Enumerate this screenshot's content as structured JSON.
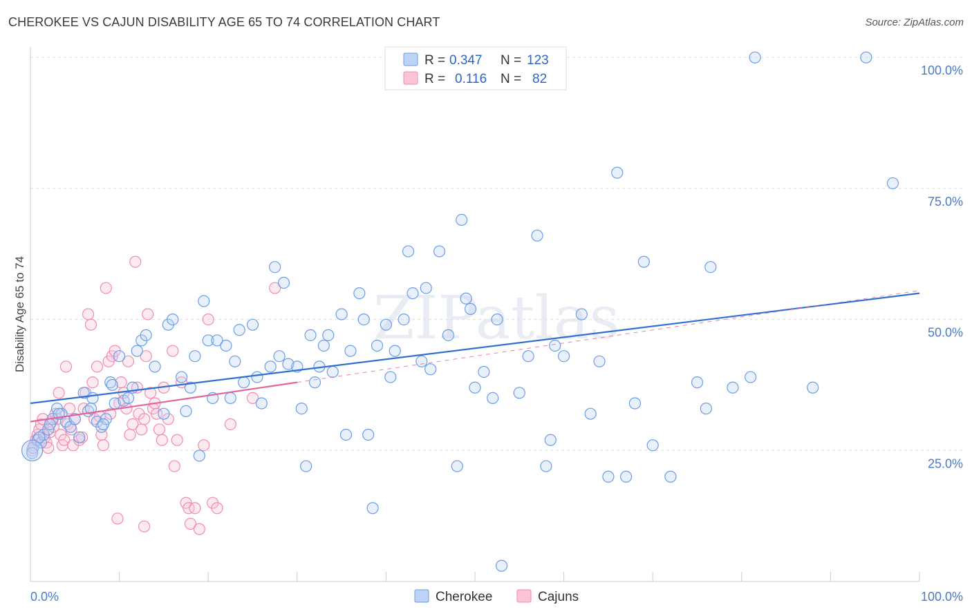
{
  "title": "CHEROKEE VS CAJUN DISABILITY AGE 65 TO 74 CORRELATION CHART",
  "source": "Source: ZipAtlas.com",
  "watermark": "ZIPatlas",
  "colors": {
    "cherokee": "#6a9de6",
    "cajuns": "#f08cb0",
    "cherokee_line": "#2f6fd0",
    "cajuns_line": "#e0649a"
  },
  "legend": {
    "rows": [
      {
        "r_label": "R =",
        "r_value": "0.347",
        "n_label": "N =",
        "n_value": "123"
      },
      {
        "r_label": "R =",
        "r_value": "0.116",
        "n_label": "N =",
        "n_value": "82"
      }
    ]
  },
  "bottom_legend": [
    "Cherokee",
    "Cajuns"
  ],
  "chart_data": {
    "type": "scatter",
    "title": "CHEROKEE VS CAJUN DISABILITY AGE 65 TO 74 CORRELATION CHART",
    "xlabel": "",
    "ylabel": "Disability Age 65 to 74",
    "xlim": [
      0,
      100
    ],
    "ylim": [
      0,
      102
    ],
    "x_tick_labels": [
      "0.0%",
      "100.0%"
    ],
    "y_ticks": [
      25,
      50,
      75,
      100
    ],
    "y_tick_labels": [
      "25.0%",
      "50.0%",
      "75.0%",
      "100.0%"
    ],
    "grid": true,
    "legend_position": "top-center",
    "series": [
      {
        "name": "Cherokee",
        "trend": {
          "x0": 0,
          "y0": 34.0,
          "x1": 100,
          "y1": 55.0
        },
        "points": [
          [
            0.3,
            25.5
          ],
          [
            0.8,
            27
          ],
          [
            1.2,
            26.5
          ],
          [
            1.5,
            28
          ],
          [
            2,
            29
          ],
          [
            2.5,
            31
          ],
          [
            3,
            33
          ],
          [
            3.5,
            32
          ],
          [
            4,
            30.5
          ],
          [
            4.5,
            29.5
          ],
          [
            5,
            31
          ],
          [
            5.5,
            27.5
          ],
          [
            6,
            36
          ],
          [
            6.5,
            32.5
          ],
          [
            7,
            35
          ],
          [
            7.5,
            30.5
          ],
          [
            8,
            29.5
          ],
          [
            8.5,
            31
          ],
          [
            9,
            38
          ],
          [
            9.5,
            34
          ],
          [
            10,
            43
          ],
          [
            10.5,
            34.5
          ],
          [
            11,
            35
          ],
          [
            11.5,
            37
          ],
          [
            12,
            44
          ],
          [
            12.5,
            46
          ],
          [
            13,
            47
          ],
          [
            14,
            41
          ],
          [
            15,
            32
          ],
          [
            15.5,
            49
          ],
          [
            16,
            50
          ],
          [
            17,
            39
          ],
          [
            17.5,
            32.5
          ],
          [
            18,
            37
          ],
          [
            18.5,
            43
          ],
          [
            19,
            24
          ],
          [
            19.5,
            53.5
          ],
          [
            20,
            46
          ],
          [
            20.5,
            35
          ],
          [
            21,
            46
          ],
          [
            22,
            45
          ],
          [
            22.5,
            35
          ],
          [
            23,
            42
          ],
          [
            23.5,
            48
          ],
          [
            24,
            38
          ],
          [
            25,
            49
          ],
          [
            25.5,
            39
          ],
          [
            26,
            34
          ],
          [
            27,
            41
          ],
          [
            27.5,
            60
          ],
          [
            28,
            43
          ],
          [
            28.5,
            57
          ],
          [
            29,
            41.5
          ],
          [
            30,
            41
          ],
          [
            30.5,
            33
          ],
          [
            31,
            22
          ],
          [
            31.5,
            47
          ],
          [
            32,
            38
          ],
          [
            32.5,
            41
          ],
          [
            33,
            45
          ],
          [
            33.5,
            47
          ],
          [
            34,
            40
          ],
          [
            35,
            51
          ],
          [
            35.5,
            28
          ],
          [
            36,
            44
          ],
          [
            37,
            55
          ],
          [
            37.5,
            50
          ],
          [
            38,
            28
          ],
          [
            38.5,
            14
          ],
          [
            39,
            45
          ],
          [
            40,
            49
          ],
          [
            40.5,
            39
          ],
          [
            41,
            44
          ],
          [
            42,
            50
          ],
          [
            42.5,
            63
          ],
          [
            43,
            55
          ],
          [
            44,
            42
          ],
          [
            44.5,
            56
          ],
          [
            45,
            40.5
          ],
          [
            46,
            63
          ],
          [
            47,
            47
          ],
          [
            48,
            22
          ],
          [
            48.5,
            69
          ],
          [
            49,
            54
          ],
          [
            49.5,
            52
          ],
          [
            50,
            37
          ],
          [
            51,
            40
          ],
          [
            52,
            35
          ],
          [
            52.5,
            50
          ],
          [
            53,
            3
          ],
          [
            55,
            36
          ],
          [
            56,
            43
          ],
          [
            57,
            66
          ],
          [
            58,
            22
          ],
          [
            58.5,
            27
          ],
          [
            59,
            45
          ],
          [
            60,
            43
          ],
          [
            62,
            51
          ],
          [
            63,
            32
          ],
          [
            64,
            42
          ],
          [
            65,
            20
          ],
          [
            66,
            78
          ],
          [
            67,
            20
          ],
          [
            68,
            34
          ],
          [
            69,
            61
          ],
          [
            70,
            26
          ],
          [
            72,
            20
          ],
          [
            75,
            38
          ],
          [
            76,
            33
          ],
          [
            76.5,
            60
          ],
          [
            79,
            37
          ],
          [
            81,
            39
          ],
          [
            81.5,
            100
          ],
          [
            88,
            37
          ],
          [
            94,
            100
          ],
          [
            97,
            76
          ],
          [
            0.2,
            24.5
          ],
          [
            1,
            27.5
          ],
          [
            2.2,
            30
          ],
          [
            3.2,
            32
          ],
          [
            6.8,
            33
          ],
          [
            8.2,
            30
          ],
          [
            9.2,
            37.5
          ]
        ]
      },
      {
        "name": "Cajuns",
        "trend": {
          "x0": 0,
          "y0": 30.5,
          "x1": 30,
          "y1": 38.0
        },
        "points": [
          [
            0.2,
            25
          ],
          [
            0.4,
            26
          ],
          [
            0.6,
            27
          ],
          [
            0.8,
            28
          ],
          [
            1,
            29
          ],
          [
            1.2,
            30
          ],
          [
            1.4,
            31
          ],
          [
            1.6,
            27.5
          ],
          [
            1.8,
            26.5
          ],
          [
            2,
            25.5
          ],
          [
            2.2,
            28.5
          ],
          [
            2.4,
            30.5
          ],
          [
            2.6,
            29.5
          ],
          [
            2.8,
            32
          ],
          [
            3,
            31
          ],
          [
            3.2,
            36
          ],
          [
            3.4,
            28
          ],
          [
            3.6,
            26
          ],
          [
            3.8,
            27
          ],
          [
            4,
            41
          ],
          [
            4.2,
            30
          ],
          [
            4.4,
            33
          ],
          [
            4.6,
            29
          ],
          [
            4.8,
            26
          ],
          [
            5,
            31
          ],
          [
            5.5,
            27
          ],
          [
            6,
            33
          ],
          [
            6.2,
            36
          ],
          [
            6.5,
            51
          ],
          [
            6.8,
            49
          ],
          [
            7,
            38
          ],
          [
            7.2,
            31
          ],
          [
            7.5,
            41
          ],
          [
            8,
            28
          ],
          [
            8.2,
            26
          ],
          [
            8.5,
            56
          ],
          [
            8.8,
            42
          ],
          [
            9,
            32
          ],
          [
            9.2,
            43
          ],
          [
            9.5,
            44
          ],
          [
            10,
            34
          ],
          [
            10.2,
            38
          ],
          [
            10.5,
            36
          ],
          [
            10.8,
            33
          ],
          [
            11,
            42
          ],
          [
            11.2,
            28
          ],
          [
            11.5,
            30
          ],
          [
            11.8,
            61
          ],
          [
            12,
            37
          ],
          [
            12.2,
            32
          ],
          [
            12.5,
            29
          ],
          [
            12.8,
            31
          ],
          [
            13,
            43
          ],
          [
            13.2,
            51
          ],
          [
            13.5,
            36
          ],
          [
            13.8,
            33
          ],
          [
            14,
            34
          ],
          [
            14.2,
            32
          ],
          [
            14.5,
            29
          ],
          [
            14.8,
            27
          ],
          [
            15,
            37
          ],
          [
            15.5,
            31
          ],
          [
            16,
            44
          ],
          [
            16.2,
            22
          ],
          [
            16.5,
            27
          ],
          [
            17,
            38
          ],
          [
            17.5,
            15
          ],
          [
            17.8,
            14
          ],
          [
            18,
            11
          ],
          [
            18.5,
            14
          ],
          [
            19,
            10
          ],
          [
            19.5,
            26
          ],
          [
            20,
            50
          ],
          [
            20.5,
            15
          ],
          [
            21,
            14
          ],
          [
            9.8,
            12
          ],
          [
            12.8,
            10.5
          ],
          [
            27.5,
            56
          ],
          [
            25,
            35
          ],
          [
            22.5,
            30
          ],
          [
            5.8,
            27.5
          ],
          [
            7.8,
            31.5
          ]
        ]
      }
    ]
  }
}
